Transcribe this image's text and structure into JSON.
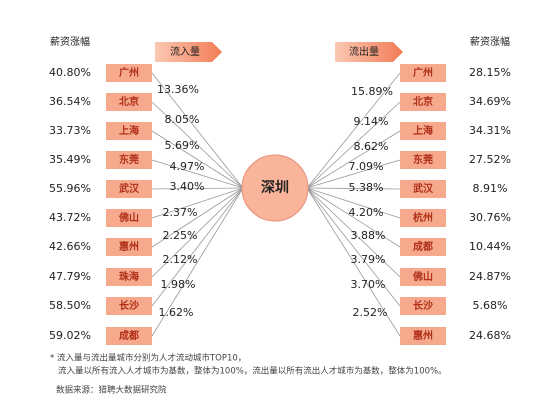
{
  "left": {
    "header": "薪资涨幅",
    "arrow_label": "流入量",
    "rows": [
      {
        "salary": "40.80%",
        "city": "广州",
        "flow": "13.36%"
      },
      {
        "salary": "36.54%",
        "city": "北京",
        "flow": "8.05%"
      },
      {
        "salary": "33.73%",
        "city": "上海",
        "flow": "5.69%"
      },
      {
        "salary": "35.49%",
        "city": "东莞",
        "flow": "4.97%"
      },
      {
        "salary": "55.96%",
        "city": "武汉",
        "flow": "3.40%"
      },
      {
        "salary": "43.72%",
        "city": "佛山",
        "flow": "2.37%"
      },
      {
        "salary": "42.66%",
        "city": "惠州",
        "flow": "2.25%"
      },
      {
        "salary": "47.79%",
        "city": "珠海",
        "flow": "2.12%"
      },
      {
        "salary": "58.50%",
        "city": "长沙",
        "flow": "1.98%"
      },
      {
        "salary": "59.02%",
        "city": "成都",
        "flow": "1.62%"
      }
    ]
  },
  "right": {
    "header": "薪资涨幅",
    "arrow_label": "流出量",
    "rows": [
      {
        "salary": "28.15%",
        "city": "广州",
        "flow": "15.89%"
      },
      {
        "salary": "34.69%",
        "city": "北京",
        "flow": "9.14%"
      },
      {
        "salary": "34.31%",
        "city": "上海",
        "flow": "8.62%"
      },
      {
        "salary": "27.52%",
        "city": "东莞",
        "flow": "7.09%"
      },
      {
        "salary": "8.91%",
        "city": "武汉",
        "flow": "5.38%"
      },
      {
        "salary": "30.76%",
        "city": "杭州",
        "flow": "4.20%"
      },
      {
        "salary": "10.44%",
        "city": "成都",
        "flow": "3.88%"
      },
      {
        "salary": "24.87%",
        "city": "佛山",
        "flow": "3.79%"
      },
      {
        "salary": "5.68%",
        "city": "长沙",
        "flow": "3.70%"
      },
      {
        "salary": "24.68%",
        "city": "惠州",
        "flow": "2.52%"
      }
    ]
  },
  "center": {
    "label": "深圳"
  },
  "footnote": [
    "* 流入量与流出量城市分别为人才流动城市TOP10，",
    "流入量以所有流入人才城市为基数，整体为100%，流出量以所有流出人才城市为基数，整体为100%。"
  ],
  "source": "数据来源：猎聘大数据研究院"
}
